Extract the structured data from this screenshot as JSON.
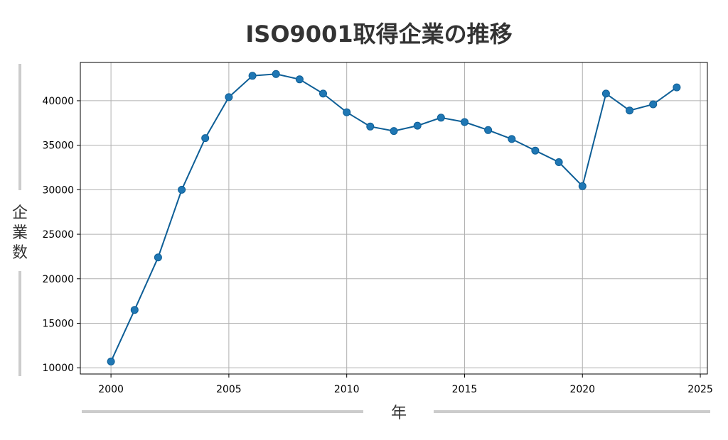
{
  "chart_data": {
    "type": "line",
    "title": "ISO9001取得企業の推移",
    "xlabel": "年",
    "ylabel": "企業数",
    "xlim": [
      1998.7,
      2025.3
    ],
    "ylim": [
      9300,
      44300
    ],
    "x_ticks": [
      2000,
      2005,
      2010,
      2015,
      2020,
      2025
    ],
    "y_ticks": [
      10000,
      15000,
      20000,
      25000,
      30000,
      35000,
      40000
    ],
    "grid": true,
    "series": [
      {
        "color": "#1f77b4",
        "line_color": "#0d5e96",
        "x": [
          2000,
          2001,
          2002,
          2003,
          2004,
          2005,
          2006,
          2007,
          2008,
          2009,
          2010,
          2011,
          2012,
          2013,
          2014,
          2015,
          2016,
          2017,
          2018,
          2019,
          2020,
          2021,
          2022,
          2023,
          2024
        ],
        "y": [
          10700,
          16500,
          22400,
          30000,
          35800,
          40400,
          42800,
          43000,
          42400,
          40800,
          38700,
          37100,
          36600,
          37200,
          38100,
          37600,
          36700,
          35700,
          34400,
          33100,
          30400,
          40800,
          38900,
          39600,
          41500
        ]
      }
    ]
  }
}
